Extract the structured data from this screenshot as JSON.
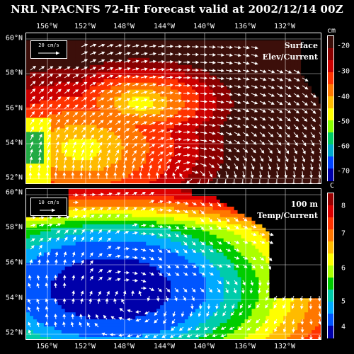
{
  "title": "NRL NPACNFS 72-Hr Forecast valid at 2002/12/14 00Z",
  "lon_labels": [
    "156°W",
    "152°W",
    "148°W",
    "144°W",
    "140°W",
    "136°W",
    "132°W"
  ],
  "lat_labels": [
    "60°N",
    "58°N",
    "56°N",
    "54°N",
    "52°N"
  ],
  "top_panel": {
    "label_line1": "Surface",
    "label_line2": "Elev/Current",
    "scale_label": "20 cm/s",
    "colorbar_unit": "cm",
    "colorbar_ticks": [
      "-20",
      "-30",
      "-40",
      "-50",
      "-60",
      "-70"
    ],
    "colors": [
      "#3c0f0a",
      "#8b0000",
      "#cc0000",
      "#ff3300",
      "#ff7700",
      "#ffbb00",
      "#ffff00",
      "#88ff00",
      "#00cc66",
      "#00aacc",
      "#0044ff",
      "#0000aa"
    ]
  },
  "bottom_panel": {
    "label_line1": "100 m",
    "label_line2": "Temp/Current",
    "scale_label": "10 cm/s",
    "colorbar_unit": "C",
    "colorbar_ticks": [
      "8",
      "7",
      "6",
      "5",
      "4"
    ],
    "colors": [
      "#990000",
      "#dd0000",
      "#ff3300",
      "#ff7700",
      "#ffbb00",
      "#ffff00",
      "#aaff00",
      "#00cc00",
      "#00ccaa",
      "#00aaff",
      "#0055ff",
      "#0000aa"
    ]
  }
}
